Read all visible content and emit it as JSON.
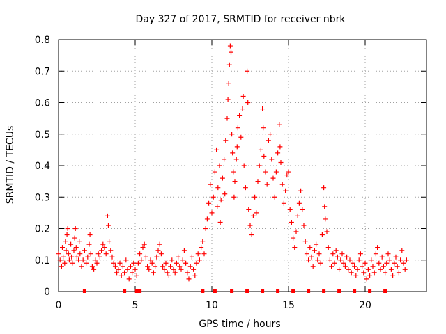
{
  "chart_data": {
    "type": "scatter",
    "title": "Day 327 of 2017, SRMTID for receiver nbrk",
    "xlabel": "GPS time / hours",
    "ylabel": "SRMTID / TECUs",
    "xlim": [
      0,
      24
    ],
    "ylim": [
      0,
      0.8
    ],
    "x_ticks": [
      0,
      5,
      10,
      15,
      20
    ],
    "x_tick_labels": [
      "0",
      "5",
      "10",
      "15",
      "20"
    ],
    "y_ticks": [
      0,
      0.1,
      0.2,
      0.3,
      0.4,
      0.5,
      0.6,
      0.7,
      0.8
    ],
    "y_tick_labels": [
      "0",
      "0.1",
      "0.2",
      "0.3",
      "0.4",
      "0.5",
      "0.6",
      "0.7",
      "0.8"
    ],
    "grid": true,
    "marker": "+",
    "color": "#ff0000",
    "gap_markers_x": [
      1.7,
      4.3,
      5.1,
      5.3,
      9.4,
      10.2,
      11.3,
      12.3,
      13.3,
      14.3,
      15.3,
      16.3,
      17.3,
      18.3,
      19.3,
      20.3,
      21.3
    ],
    "series": [
      {
        "name": "SRMTID",
        "points": [
          [
            0.0,
            0.12
          ],
          [
            0.1,
            0.1
          ],
          [
            0.2,
            0.08
          ],
          [
            0.25,
            0.14
          ],
          [
            0.3,
            0.11
          ],
          [
            0.4,
            0.09
          ],
          [
            0.45,
            0.16
          ],
          [
            0.5,
            0.13
          ],
          [
            0.55,
            0.18
          ],
          [
            0.6,
            0.2
          ],
          [
            0.65,
            0.12
          ],
          [
            0.7,
            0.1
          ],
          [
            0.8,
            0.15
          ],
          [
            0.85,
            0.11
          ],
          [
            0.9,
            0.09
          ],
          [
            1.0,
            0.13
          ],
          [
            1.05,
            0.17
          ],
          [
            1.1,
            0.2
          ],
          [
            1.15,
            0.14
          ],
          [
            1.2,
            0.11
          ],
          [
            1.3,
            0.1
          ],
          [
            1.35,
            0.16
          ],
          [
            1.4,
            0.12
          ],
          [
            1.5,
            0.08
          ],
          [
            1.6,
            0.1
          ],
          [
            1.7,
            0.13
          ],
          [
            1.8,
            0.09
          ],
          [
            1.9,
            0.11
          ],
          [
            2.0,
            0.15
          ],
          [
            2.05,
            0.18
          ],
          [
            2.1,
            0.12
          ],
          [
            2.2,
            0.08
          ],
          [
            2.3,
            0.07
          ],
          [
            2.4,
            0.1
          ],
          [
            2.5,
            0.09
          ],
          [
            2.6,
            0.12
          ],
          [
            2.7,
            0.11
          ],
          [
            2.8,
            0.13
          ],
          [
            2.9,
            0.15
          ],
          [
            3.0,
            0.14
          ],
          [
            3.1,
            0.12
          ],
          [
            3.2,
            0.24
          ],
          [
            3.25,
            0.21
          ],
          [
            3.3,
            0.16
          ],
          [
            3.4,
            0.13
          ],
          [
            3.5,
            0.11
          ],
          [
            3.6,
            0.09
          ],
          [
            3.7,
            0.08
          ],
          [
            3.8,
            0.06
          ],
          [
            3.9,
            0.07
          ],
          [
            4.0,
            0.09
          ],
          [
            4.1,
            0.05
          ],
          [
            4.2,
            0.08
          ],
          [
            4.3,
            0.06
          ],
          [
            4.4,
            0.1
          ],
          [
            4.5,
            0.07
          ],
          [
            4.6,
            0.04
          ],
          [
            4.7,
            0.08
          ],
          [
            4.8,
            0.06
          ],
          [
            4.9,
            0.09
          ],
          [
            5.0,
            0.07
          ],
          [
            5.1,
            0.05
          ],
          [
            5.2,
            0.09
          ],
          [
            5.3,
            0.12
          ],
          [
            5.4,
            0.1
          ],
          [
            5.5,
            0.14
          ],
          [
            5.6,
            0.15
          ],
          [
            5.7,
            0.11
          ],
          [
            5.8,
            0.08
          ],
          [
            5.9,
            0.07
          ],
          [
            6.0,
            0.1
          ],
          [
            6.1,
            0.09
          ],
          [
            6.2,
            0.06
          ],
          [
            6.3,
            0.08
          ],
          [
            6.4,
            0.11
          ],
          [
            6.5,
            0.13
          ],
          [
            6.6,
            0.15
          ],
          [
            6.7,
            0.12
          ],
          [
            6.8,
            0.08
          ],
          [
            6.9,
            0.07
          ],
          [
            7.0,
            0.09
          ],
          [
            7.1,
            0.06
          ],
          [
            7.2,
            0.05
          ],
          [
            7.3,
            0.08
          ],
          [
            7.4,
            0.1
          ],
          [
            7.5,
            0.07
          ],
          [
            7.6,
            0.06
          ],
          [
            7.7,
            0.09
          ],
          [
            7.8,
            0.11
          ],
          [
            7.9,
            0.08
          ],
          [
            8.0,
            0.07
          ],
          [
            8.1,
            0.1
          ],
          [
            8.2,
            0.13
          ],
          [
            8.3,
            0.09
          ],
          [
            8.4,
            0.06
          ],
          [
            8.5,
            0.04
          ],
          [
            8.6,
            0.08
          ],
          [
            8.7,
            0.11
          ],
          [
            8.8,
            0.07
          ],
          [
            8.9,
            0.05
          ],
          [
            9.0,
            0.09
          ],
          [
            9.1,
            0.12
          ],
          [
            9.2,
            0.1
          ],
          [
            9.3,
            0.14
          ],
          [
            9.4,
            0.16
          ],
          [
            9.5,
            0.12
          ],
          [
            9.6,
            0.2
          ],
          [
            9.7,
            0.23
          ],
          [
            9.8,
            0.28
          ],
          [
            9.9,
            0.34
          ],
          [
            10.0,
            0.25
          ],
          [
            10.1,
            0.3
          ],
          [
            10.2,
            0.38
          ],
          [
            10.3,
            0.45
          ],
          [
            10.35,
            0.27
          ],
          [
            10.4,
            0.33
          ],
          [
            10.5,
            0.4
          ],
          [
            10.55,
            0.22
          ],
          [
            10.6,
            0.29
          ],
          [
            10.7,
            0.36
          ],
          [
            10.8,
            0.42
          ],
          [
            10.85,
            0.31
          ],
          [
            10.9,
            0.48
          ],
          [
            11.0,
            0.55
          ],
          [
            11.05,
            0.61
          ],
          [
            11.1,
            0.66
          ],
          [
            11.15,
            0.72
          ],
          [
            11.2,
            0.78
          ],
          [
            11.25,
            0.76
          ],
          [
            11.3,
            0.5
          ],
          [
            11.35,
            0.44
          ],
          [
            11.4,
            0.38
          ],
          [
            11.45,
            0.3
          ],
          [
            11.5,
            0.35
          ],
          [
            11.6,
            0.42
          ],
          [
            11.65,
            0.46
          ],
          [
            11.7,
            0.52
          ],
          [
            11.8,
            0.56
          ],
          [
            11.9,
            0.49
          ],
          [
            12.0,
            0.58
          ],
          [
            12.05,
            0.62
          ],
          [
            12.1,
            0.4
          ],
          [
            12.2,
            0.33
          ],
          [
            12.3,
            0.7
          ],
          [
            12.35,
            0.6
          ],
          [
            12.4,
            0.26
          ],
          [
            12.5,
            0.21
          ],
          [
            12.6,
            0.18
          ],
          [
            12.7,
            0.24
          ],
          [
            12.8,
            0.3
          ],
          [
            12.9,
            0.25
          ],
          [
            13.0,
            0.35
          ],
          [
            13.1,
            0.4
          ],
          [
            13.2,
            0.45
          ],
          [
            13.3,
            0.58
          ],
          [
            13.35,
            0.52
          ],
          [
            13.4,
            0.43
          ],
          [
            13.5,
            0.38
          ],
          [
            13.6,
            0.34
          ],
          [
            13.7,
            0.48
          ],
          [
            13.8,
            0.5
          ],
          [
            13.9,
            0.42
          ],
          [
            14.0,
            0.36
          ],
          [
            14.1,
            0.3
          ],
          [
            14.2,
            0.38
          ],
          [
            14.3,
            0.44
          ],
          [
            14.4,
            0.53
          ],
          [
            14.45,
            0.46
          ],
          [
            14.5,
            0.41
          ],
          [
            14.6,
            0.34
          ],
          [
            14.7,
            0.28
          ],
          [
            14.8,
            0.32
          ],
          [
            14.9,
            0.37
          ],
          [
            15.0,
            0.38
          ],
          [
            15.1,
            0.26
          ],
          [
            15.2,
            0.22
          ],
          [
            15.3,
            0.17
          ],
          [
            15.4,
            0.14
          ],
          [
            15.5,
            0.19
          ],
          [
            15.6,
            0.24
          ],
          [
            15.7,
            0.28
          ],
          [
            15.8,
            0.32
          ],
          [
            15.9,
            0.26
          ],
          [
            16.0,
            0.21
          ],
          [
            16.1,
            0.16
          ],
          [
            16.2,
            0.12
          ],
          [
            16.3,
            0.1
          ],
          [
            16.4,
            0.14
          ],
          [
            16.5,
            0.11
          ],
          [
            16.6,
            0.08
          ],
          [
            16.7,
            0.13
          ],
          [
            16.8,
            0.15
          ],
          [
            16.9,
            0.1
          ],
          [
            17.0,
            0.12
          ],
          [
            17.1,
            0.09
          ],
          [
            17.2,
            0.18
          ],
          [
            17.3,
            0.33
          ],
          [
            17.35,
            0.27
          ],
          [
            17.4,
            0.23
          ],
          [
            17.5,
            0.19
          ],
          [
            17.6,
            0.14
          ],
          [
            17.7,
            0.1
          ],
          [
            17.8,
            0.08
          ],
          [
            17.9,
            0.12
          ],
          [
            18.0,
            0.09
          ],
          [
            18.1,
            0.13
          ],
          [
            18.2,
            0.11
          ],
          [
            18.3,
            0.07
          ],
          [
            18.4,
            0.1
          ],
          [
            18.5,
            0.12
          ],
          [
            18.6,
            0.09
          ],
          [
            18.7,
            0.08
          ],
          [
            18.8,
            0.11
          ],
          [
            18.9,
            0.07
          ],
          [
            19.0,
            0.1
          ],
          [
            19.1,
            0.06
          ],
          [
            19.2,
            0.09
          ],
          [
            19.3,
            0.08
          ],
          [
            19.4,
            0.05
          ],
          [
            19.5,
            0.07
          ],
          [
            19.6,
            0.1
          ],
          [
            19.7,
            0.12
          ],
          [
            19.8,
            0.08
          ],
          [
            19.9,
            0.06
          ],
          [
            20.0,
            0.09
          ],
          [
            20.1,
            0.04
          ],
          [
            20.2,
            0.07
          ],
          [
            20.3,
            0.05
          ],
          [
            20.4,
            0.1
          ],
          [
            20.5,
            0.08
          ],
          [
            20.6,
            0.06
          ],
          [
            20.7,
            0.12
          ],
          [
            20.8,
            0.14
          ],
          [
            20.9,
            0.09
          ],
          [
            21.0,
            0.07
          ],
          [
            21.1,
            0.11
          ],
          [
            21.2,
            0.08
          ],
          [
            21.3,
            0.06
          ],
          [
            21.4,
            0.09
          ],
          [
            21.5,
            0.12
          ],
          [
            21.6,
            0.1
          ],
          [
            21.7,
            0.07
          ],
          [
            21.8,
            0.05
          ],
          [
            21.9,
            0.09
          ],
          [
            22.0,
            0.11
          ],
          [
            22.1,
            0.08
          ],
          [
            22.2,
            0.06
          ],
          [
            22.3,
            0.1
          ],
          [
            22.4,
            0.13
          ],
          [
            22.5,
            0.09
          ],
          [
            22.6,
            0.07
          ],
          [
            22.7,
            0.1
          ]
        ]
      }
    ]
  }
}
